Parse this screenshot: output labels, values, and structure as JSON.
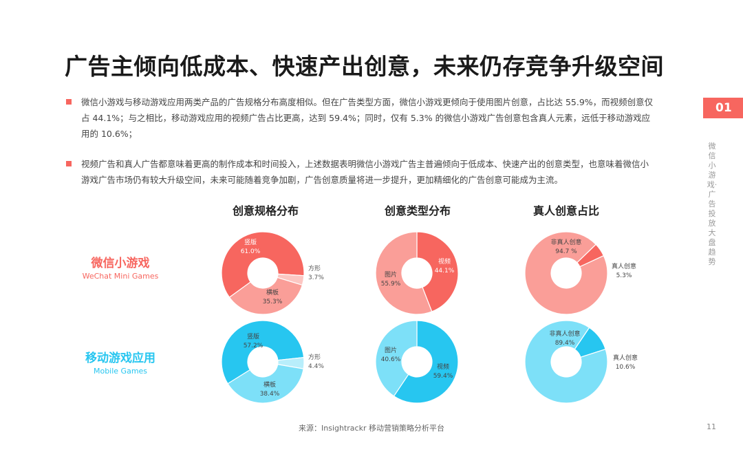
{
  "title": "广告主倾向低成本、快速产出创意，未来仍存竞争升级空间",
  "bullets": [
    "微信小游戏与移动游戏应用两类产品的广告规格分布高度相似。但在广告类型方面，微信小游戏更倾向于使用图片创意，占比达 55.9%，而视频创意仅占 44.1%；与之相比，移动游戏应用的视频广告占比更高，达到 59.4%；同时，仅有 5.3% 的微信小游戏广告创意包含真人元素，远低于移动游戏应用的 10.6%；",
    "视频广告和真人广告都意味着更高的制作成本和时间投入，上述数据表明微信小游戏广告主普遍倾向于低成本、快速产出的创意类型，也意味着微信小游戏广告市场仍有较大升级空间，未来可能随着竞争加剧，广告创意质量将进一步提升，更加精细化的广告创意可能成为主流。"
  ],
  "side": {
    "tab": "01",
    "text": "微信小游戏·广告投放大盘趋势"
  },
  "page_number": "11",
  "source": "来源：Insightrackr 移动营销策略分析平台",
  "rows": {
    "wechat": {
      "zh": "微信小游戏",
      "en": "WeChat Mini Games"
    },
    "mobile": {
      "zh": "移动游戏应用",
      "en": "Mobile Games"
    }
  },
  "columns": [
    "创意规格分布",
    "创意类型分布",
    "真人创意占比"
  ],
  "colors": {
    "accent": "#f7665f",
    "wechat_dark": "#f7665f",
    "wechat_mid": "#fa9e98",
    "wechat_light": "#fcc6c2",
    "mobile_dark": "#27c6f0",
    "mobile_mid": "#7de0f8",
    "mobile_light": "#b8eefb"
  },
  "chart_data": [
    {
      "type": "pie",
      "title": "创意规格分布",
      "row": "微信小游戏",
      "slices": [
        {
          "label": "竖版",
          "value": 61.0,
          "display": "61.0%"
        },
        {
          "label": "方形",
          "value": 3.7,
          "display": "3.7%"
        },
        {
          "label": "横板",
          "value": 35.3,
          "display": "35.3%"
        }
      ]
    },
    {
      "type": "pie",
      "title": "创意类型分布",
      "row": "微信小游戏",
      "slices": [
        {
          "label": "视频",
          "value": 44.1,
          "display": "44.1%"
        },
        {
          "label": "图片",
          "value": 55.9,
          "display": "55.9%"
        }
      ]
    },
    {
      "type": "pie",
      "title": "真人创意占比",
      "row": "微信小游戏",
      "slices": [
        {
          "label": "真人创意",
          "value": 5.3,
          "display": "5.3%"
        },
        {
          "label": "非真人创意",
          "value": 94.7,
          "display": "94.7 %"
        }
      ]
    },
    {
      "type": "pie",
      "title": "创意规格分布",
      "row": "移动游戏应用",
      "slices": [
        {
          "label": "竖版",
          "value": 57.2,
          "display": "57.2%"
        },
        {
          "label": "方形",
          "value": 4.4,
          "display": "4.4%"
        },
        {
          "label": "横板",
          "value": 38.4,
          "display": "38.4%"
        }
      ]
    },
    {
      "type": "pie",
      "title": "创意类型分布",
      "row": "移动游戏应用",
      "slices": [
        {
          "label": "视频",
          "value": 59.4,
          "display": "59.4%"
        },
        {
          "label": "图片",
          "value": 40.6,
          "display": "40.6%"
        }
      ]
    },
    {
      "type": "pie",
      "title": "真人创意占比",
      "row": "移动游戏应用",
      "slices": [
        {
          "label": "真人创意",
          "value": 10.6,
          "display": "10.6%"
        },
        {
          "label": "非真人创意",
          "value": 89.4,
          "display": "89.4%"
        }
      ]
    }
  ]
}
